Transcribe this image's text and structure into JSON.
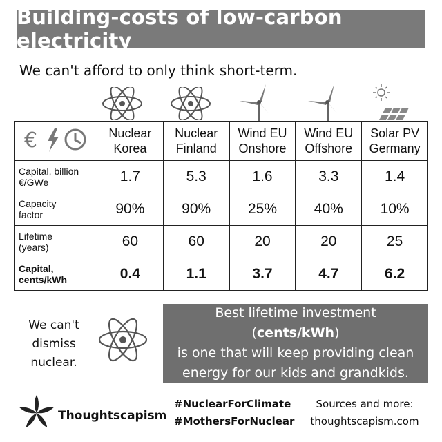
{
  "title": "Building-costs of low-carbon electricity",
  "subtitle": "We can't afford to only think short-term.",
  "table": {
    "header_icons": [
      "euro-icon",
      "lightning-icon",
      "clock-icon"
    ],
    "columns": [
      {
        "line1": "Nuclear",
        "line2": "Korea",
        "icon": "atom-icon"
      },
      {
        "line1": "Nuclear",
        "line2": "Finland",
        "icon": "atom-icon"
      },
      {
        "line1": "Wind EU",
        "line2": "Onshore",
        "icon": "wind-turbine-icon"
      },
      {
        "line1": "Wind EU",
        "line2": "Offshore",
        "icon": "wind-turbine-icon"
      },
      {
        "line1": "Solar PV",
        "line2": "Germany",
        "icon": "solar-panel-icon"
      }
    ],
    "rows": [
      {
        "label1": "Capital, billion",
        "label2": "€/GWe",
        "values": [
          "1.7",
          "5.3",
          "1.6",
          "3.3",
          "1.4"
        ]
      },
      {
        "label1": "Capacity",
        "label2": "factor",
        "values": [
          "90%",
          "90%",
          "25%",
          "40%",
          "10%"
        ]
      },
      {
        "label1": "Lifetime",
        "label2": "(years)",
        "values": [
          "60",
          "60",
          "20",
          "20",
          "25"
        ]
      },
      {
        "label1": "Capital,",
        "label2": "cents/kWh",
        "values": [
          "0.4",
          "1.1",
          "3.7",
          "4.7",
          "6.2"
        ]
      }
    ]
  },
  "dismiss": {
    "line1": "We can't",
    "line2": "dismiss",
    "line3": "nuclear."
  },
  "investment": {
    "pre": "Best lifetime investment (",
    "bold": "cents/kWh",
    "post": ")",
    "line2": "is one that will keep providing clean",
    "line3": "energy for our kids and grandkids."
  },
  "footer": {
    "brand": "Thoughtscapism",
    "tag1": "#NuclearForClimate",
    "tag2": "#MothersForNuclear",
    "sources1": "Sources and more:",
    "sources2": "thoughtscapism.com"
  },
  "colors": {
    "title_bg": "#7a7a7a",
    "box_bg": "#6f6f6f",
    "text": "#111111"
  }
}
